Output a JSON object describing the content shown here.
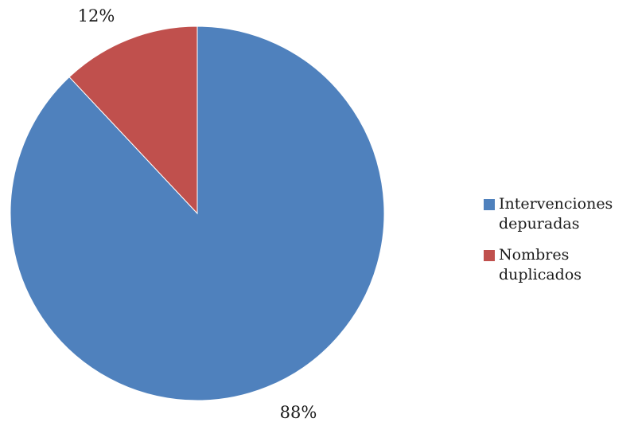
{
  "chart_data": {
    "type": "pie",
    "categories": [
      "Intervenciones depuradas",
      "Nombres duplicados"
    ],
    "values": [
      88,
      12
    ],
    "data_labels": [
      "88%",
      "12%"
    ],
    "colors": [
      "#4F81BD",
      "#C0504D"
    ],
    "start_angle_deg": 0,
    "direction": "clockwise",
    "legend_position": "right"
  },
  "legend": {
    "items": [
      {
        "label": "Intervenciones depuradas",
        "color": "#4F81BD"
      },
      {
        "label": "Nombres duplicados",
        "color": "#C0504D"
      }
    ]
  }
}
